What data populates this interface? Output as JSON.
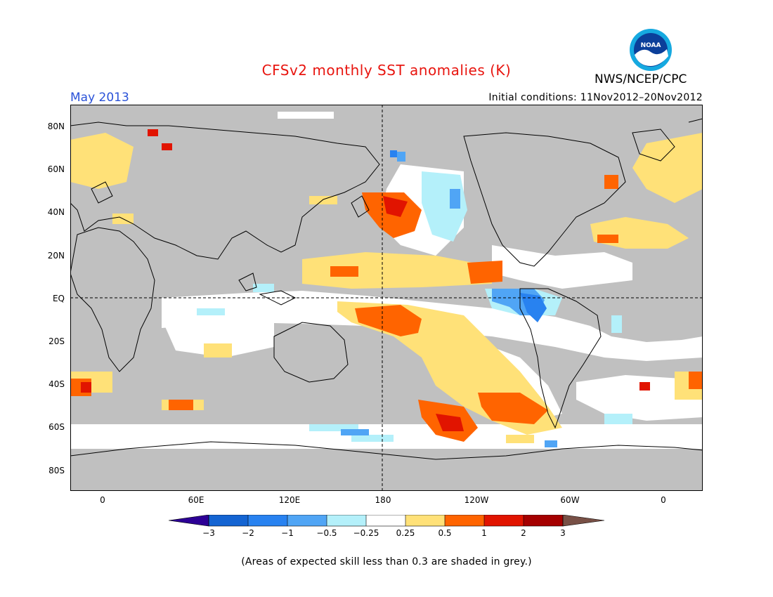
{
  "title": "CFSv2 monthly SST anomalies (K)",
  "agency": "NWS/NCEP/CPC",
  "logo_text": "NOAA",
  "valid_month": "May 2013",
  "initial_conditions": "Initial conditions: 11Nov2012–20Nov2012",
  "note": "(Areas of expected skill less than 0.3 are shaded in grey.)",
  "lat_labels": [
    "80N",
    "60N",
    "40N",
    "20N",
    "EQ",
    "20S",
    "40S",
    "60S",
    "80S"
  ],
  "lon_labels": [
    "0",
    "60E",
    "120E",
    "180",
    "120W",
    "60W",
    "0"
  ],
  "colorbar_labels": [
    "−3",
    "−2",
    "−1",
    "−0.5",
    "−0.25",
    "0.25",
    "0.5",
    "1",
    "2",
    "3"
  ],
  "colors": {
    "grey": "#c0c0c0",
    "white": "#ffffff",
    "light_blue": "#b4f0fa",
    "mid_blue": "#50a5f5",
    "blue": "#2882f0",
    "dark_blue": "#1464d2",
    "deep_blue": "#2d0096",
    "yellow": "#ffe178",
    "orange": "#ff6400",
    "red": "#e11400",
    "dark_red": "#a50000",
    "brown": "#785046"
  }
}
